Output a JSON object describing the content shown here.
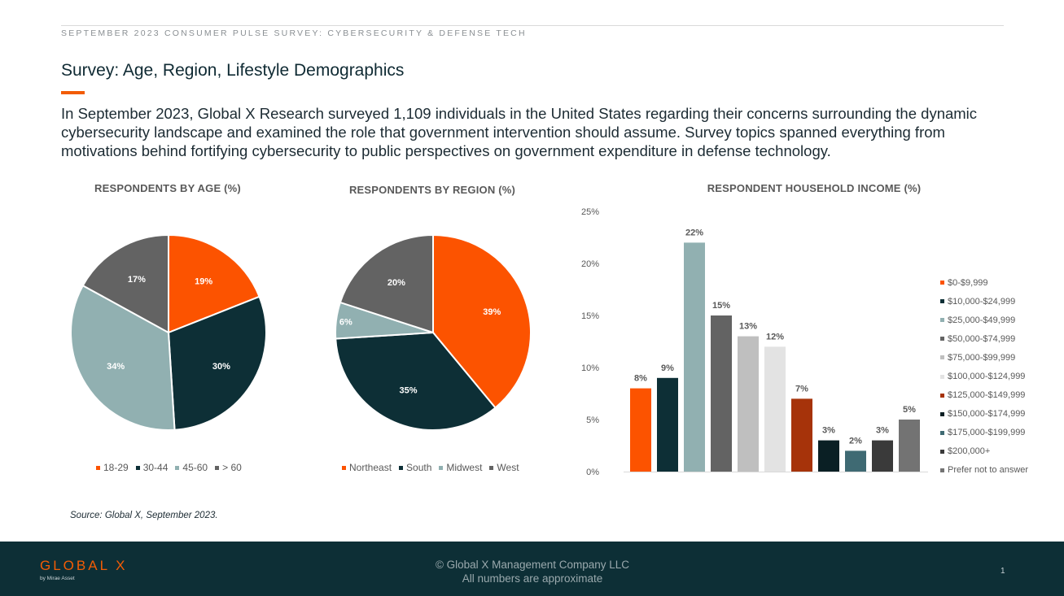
{
  "header": {
    "eyebrow": "SEPTEMBER 2023 CONSUMER PULSE SURVEY: CYBERSECURITY & DEFENSE TECH",
    "title": "Survey: Age, Region, Lifestyle Demographics",
    "intro": "In September 2023, Global X Research surveyed 1,109 individuals in the United States regarding their concerns surrounding the dynamic cybersecurity landscape and examined the role that government intervention should assume. Survey topics spanned everything from motivations behind fortifying cybersecurity to public perspectives on government expenditure in defense technology."
  },
  "chart_data": [
    {
      "type": "pie",
      "title": "RESPONDENTS BY AGE (%)",
      "categories": [
        "18-29",
        "30-44",
        "45-60",
        "> 60"
      ],
      "values": [
        19,
        30,
        34,
        17
      ],
      "labels": [
        "19%",
        "30%",
        "34%",
        "17%"
      ],
      "colors": [
        "#fc5300",
        "#0d2f36",
        "#91b0b1",
        "#636363"
      ],
      "legend": "bottom"
    },
    {
      "type": "pie",
      "title": "RESPONDENTS BY REGION (%)",
      "categories": [
        "Northeast",
        "South",
        "Midwest",
        "West"
      ],
      "values": [
        39,
        35,
        6,
        20
      ],
      "labels": [
        "39%",
        "35%",
        "6%",
        "20%"
      ],
      "colors": [
        "#fc5300",
        "#0d2f36",
        "#91b0b1",
        "#636363"
      ],
      "legend": "bottom"
    },
    {
      "type": "bar",
      "title": "RESPONDENT HOUSEHOLD INCOME (%)",
      "categories": [
        "$0-$9,999",
        "$10,000-$24,999",
        "$25,000-$49,999",
        "$50,000-$74,999",
        "$75,000-$99,999",
        "$100,000-$124,999",
        "$125,000-$149,999",
        "$150,000-$174,999",
        "$175,000-$199,999",
        "$200,000+",
        "Prefer not to answer"
      ],
      "values": [
        8,
        9,
        22,
        15,
        13,
        12,
        7,
        3,
        2,
        3,
        5
      ],
      "labels": [
        "8%",
        "9%",
        "22%",
        "15%",
        "13%",
        "12%",
        "7%",
        "3%",
        "2%",
        "3%",
        "5%"
      ],
      "colors": [
        "#fc5300",
        "#0d2f36",
        "#91b0b1",
        "#636363",
        "#bfbfbf",
        "#e3e3e3",
        "#a6330a",
        "#0a1f24",
        "#3f6a73",
        "#3a3a3a",
        "#737373"
      ],
      "ylim": [
        0,
        25
      ],
      "yticks": [
        "0%",
        "5%",
        "10%",
        "15%",
        "20%",
        "25%"
      ],
      "legend": "right"
    }
  ],
  "source": "Source: Global X, September 2023.",
  "footer": {
    "logo": "GLOBAL X",
    "logo_sub": "by Mirae Asset",
    "copyright_line1": "© Global X Management Company LLC",
    "copyright_line2": "All numbers are approximate",
    "page_number": "1"
  }
}
